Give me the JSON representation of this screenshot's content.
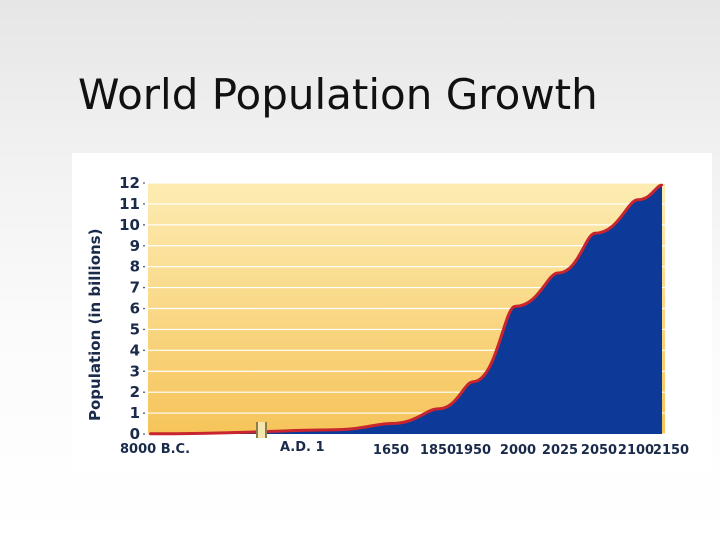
{
  "slide": {
    "title": "World Population Growth"
  },
  "colors": {
    "fill": "#0d3a99",
    "outline": "#c8252e",
    "bg_top": "#fdecb3",
    "bg_bottom": "#f6c45a",
    "grid": "#ffffff",
    "text": "#1a2a4a"
  },
  "chart_data": {
    "type": "area",
    "ylabel": "Population (in billions)",
    "xlabel": "",
    "ylim": [
      0,
      12
    ],
    "yticks": [
      0,
      1,
      2,
      3,
      4,
      5,
      6,
      7,
      8,
      9,
      10,
      11,
      12
    ],
    "grid": true,
    "axis_break": "between 8000 B.C. and A.D. 1",
    "x_tick_labels": [
      "8000 B.C.",
      "A.D. 1",
      "1650",
      "1850",
      "1950",
      "2000",
      "2025",
      "2050",
      "2100",
      "2150"
    ],
    "series": [
      {
        "x": [
          "8000 B.C.",
          "A.D. 1",
          "1650",
          "1850",
          "1950",
          "2000",
          "2025",
          "2050",
          "2100",
          "2150"
        ],
        "values": [
          0.01,
          0.2,
          0.5,
          1.2,
          2.5,
          6.1,
          7.7,
          9.6,
          11.2,
          11.9
        ]
      }
    ]
  }
}
